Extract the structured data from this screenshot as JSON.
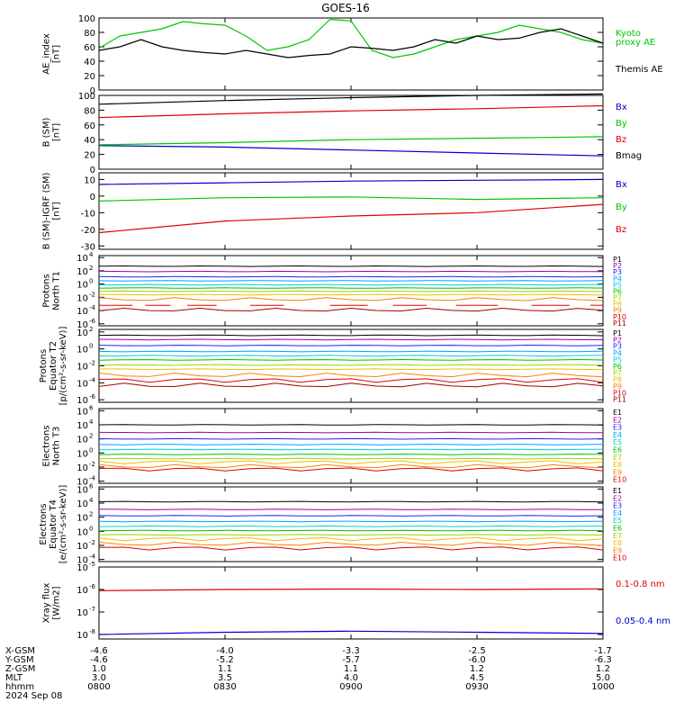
{
  "title": "GOES-16",
  "colors": {
    "black": "#000000",
    "green": "#00c800",
    "red": "#e00000",
    "blue": "#0000c8",
    "P": [
      "#000000",
      "#a000a0",
      "#2020ff",
      "#00a0ff",
      "#00d0d0",
      "#00c000",
      "#a0d000",
      "#e8c000",
      "#ff8000",
      "#e00000",
      "#a00000"
    ],
    "E": [
      "#000000",
      "#a000a0",
      "#2020ff",
      "#00a0ff",
      "#00d0d0",
      "#00c000",
      "#a0d000",
      "#e8c000",
      "#ff8000",
      "#e00000",
      "#a00000"
    ]
  },
  "chart_data": [
    {
      "id": "ae",
      "type": "line",
      "ylabel": [
        "AE_index",
        "[nT]"
      ],
      "ylim": [
        0,
        100
      ],
      "yticks": [
        0,
        20,
        40,
        60,
        80,
        100
      ],
      "yticklabels": [
        "0",
        "20",
        "40",
        "60",
        "80",
        "100"
      ],
      "series": [
        {
          "name": "Kyoto proxy AE",
          "label_lines": [
            "Kyoto",
            "proxy AE"
          ],
          "color": "green",
          "x": [
            0,
            5,
            10,
            15,
            20,
            25,
            30,
            35,
            40,
            45,
            50,
            55,
            60,
            65,
            70,
            75,
            80,
            85,
            90,
            95,
            100,
            105,
            110,
            115,
            120
          ],
          "y": [
            58,
            75,
            80,
            85,
            95,
            92,
            90,
            75,
            55,
            60,
            70,
            98,
            96,
            55,
            45,
            50,
            60,
            70,
            75,
            80,
            90,
            85,
            80,
            70,
            65
          ]
        },
        {
          "name": "Themis AE",
          "label_lines": [
            "Themis AE"
          ],
          "color": "black",
          "x": [
            0,
            5,
            10,
            15,
            20,
            25,
            30,
            35,
            40,
            45,
            50,
            55,
            60,
            65,
            70,
            75,
            80,
            85,
            90,
            95,
            100,
            105,
            110,
            115,
            120
          ],
          "y": [
            55,
            60,
            70,
            60,
            55,
            52,
            50,
            55,
            50,
            45,
            48,
            50,
            60,
            58,
            55,
            60,
            70,
            65,
            75,
            70,
            72,
            80,
            85,
            75,
            65
          ]
        }
      ]
    },
    {
      "id": "bsm",
      "type": "line",
      "ylabel": [
        "B (SM)",
        "[nT]"
      ],
      "ylim": [
        0,
        100
      ],
      "yticks": [
        0,
        20,
        40,
        60,
        80,
        100
      ],
      "yticklabels": [
        "0",
        "20",
        "40",
        "60",
        "80",
        "100"
      ],
      "series": [
        {
          "name": "Bx",
          "color": "blue",
          "x": [
            0,
            30,
            60,
            90,
            120
          ],
          "y": [
            32,
            30,
            26,
            22,
            18
          ]
        },
        {
          "name": "By",
          "color": "green",
          "x": [
            0,
            30,
            60,
            90,
            120
          ],
          "y": [
            33,
            36,
            40,
            42,
            44
          ]
        },
        {
          "name": "Bz",
          "color": "red",
          "x": [
            0,
            30,
            60,
            90,
            120
          ],
          "y": [
            70,
            75,
            79,
            82,
            86
          ]
        },
        {
          "name": "Bmag",
          "color": "black",
          "x": [
            0,
            30,
            60,
            90,
            120
          ],
          "y": [
            88,
            93,
            97,
            100,
            102
          ]
        }
      ]
    },
    {
      "id": "bigrf",
      "type": "line",
      "ylabel": [
        "B (SM)-IGRF (SM)",
        "[nT]"
      ],
      "ylim": [
        -32,
        14
      ],
      "yticks": [
        -30,
        -20,
        -10,
        0,
        10
      ],
      "yticklabels": [
        "-30",
        "-20",
        "-10",
        "0",
        "10"
      ],
      "series": [
        {
          "name": "Bx",
          "color": "blue",
          "x": [
            0,
            30,
            60,
            90,
            120
          ],
          "y": [
            7,
            8,
            9,
            9.5,
            10
          ]
        },
        {
          "name": "By",
          "color": "green",
          "x": [
            0,
            30,
            60,
            90,
            120
          ],
          "y": [
            -3,
            -1,
            -0.5,
            -2,
            -1
          ]
        },
        {
          "name": "Bz",
          "color": "red",
          "x": [
            0,
            30,
            60,
            90,
            120
          ],
          "y": [
            -22,
            -15,
            -12,
            -10,
            -5
          ]
        }
      ]
    },
    {
      "id": "pnorth",
      "type": "line",
      "log": true,
      "ylabel": [
        "Protons",
        "North T1"
      ],
      "ylim": [
        -6.3,
        4.3
      ],
      "yticks": [
        -6,
        -4,
        -2,
        0,
        2,
        4
      ],
      "yticklabels": [
        "10",
        "10",
        "10",
        "10",
        "10",
        "10"
      ],
      "ytickexp": [
        "-6",
        "-4",
        "-2",
        "0",
        "2",
        "4"
      ],
      "labels": [
        "P1",
        "P2",
        "P3",
        "P4",
        "P5",
        "P6",
        "P7",
        "P8",
        "P9",
        "P10",
        "P11"
      ],
      "levels": [
        2.7,
        1.9,
        1.1,
        0.5,
        -0.1,
        -0.6,
        -1.1,
        -1.6,
        -2.3,
        -3.2,
        -3.9
      ],
      "segments": [
        [
          0,
          8
        ],
        [
          11,
          17
        ],
        [
          21,
          28
        ],
        [
          36,
          44
        ],
        [
          55,
          64
        ],
        [
          70,
          78
        ],
        [
          85,
          95
        ],
        [
          103,
          112
        ],
        [
          117,
          120
        ]
      ]
    },
    {
      "id": "pequator",
      "type": "line",
      "log": true,
      "ylabel": [
        "Protons",
        "Equator T2",
        "[p/(cm²-s-sr-keV)]"
      ],
      "ylim": [
        -6.3,
        2.3
      ],
      "yticks": [
        -6,
        -4,
        -2,
        0,
        2
      ],
      "yticklabels": [
        "10",
        "10",
        "10",
        "10",
        "10"
      ],
      "ytickexp": [
        "-6",
        "-4",
        "-2",
        "0",
        "2"
      ],
      "labels": [
        "P1",
        "P2",
        "P3",
        "P4",
        "P5",
        "P6",
        "P7",
        "P8",
        "P9",
        "P10",
        "P11"
      ],
      "levels": [
        1.6,
        1.1,
        0.4,
        -0.3,
        -0.8,
        -1.3,
        -1.9,
        -2.4,
        -3.1,
        -3.7,
        -4.3
      ]
    },
    {
      "id": "enorth",
      "type": "line",
      "log": true,
      "ylabel": [
        "Electrons",
        "North T3"
      ],
      "ylim": [
        -4.3,
        6.3
      ],
      "yticks": [
        -4,
        -2,
        0,
        2,
        4,
        6
      ],
      "yticklabels": [
        "10",
        "10",
        "10",
        "10",
        "10",
        "10"
      ],
      "ytickexp": [
        "-4",
        "-2",
        "0",
        "2",
        "4",
        "6"
      ],
      "labels": [
        "E1",
        "E2",
        "E3",
        "E4",
        "E5",
        "E6",
        "E7",
        "E8",
        "E9",
        "E10"
      ],
      "levels": [
        4.0,
        2.9,
        2.0,
        1.2,
        0.5,
        -0.2,
        -0.8,
        -1.3,
        -1.9,
        -2.3
      ]
    },
    {
      "id": "eequator",
      "type": "line",
      "log": true,
      "ylabel": [
        "Electrons",
        "Equator T4",
        "[e/(cm²-s-sr-keV)]"
      ],
      "ylim": [
        -4.3,
        6.3
      ],
      "yticks": [
        -4,
        -2,
        0,
        2,
        4,
        6
      ],
      "yticklabels": [
        "10",
        "10",
        "10",
        "10",
        "10",
        "10"
      ],
      "ytickexp": [
        "-4",
        "-2",
        "0",
        "2",
        "4",
        "6"
      ],
      "labels": [
        "E1",
        "E2",
        "E3",
        "E4",
        "E5",
        "E6",
        "E7",
        "E8",
        "E9",
        "E10"
      ],
      "levels": [
        4.2,
        3.1,
        2.2,
        1.4,
        0.7,
        0.1,
        -0.5,
        -1.1,
        -1.8,
        -2.4
      ]
    },
    {
      "id": "xray",
      "type": "line",
      "log": true,
      "ylabel": [
        "Xray flux",
        "[W/m2]"
      ],
      "ylim": [
        -8.2,
        -5.0
      ],
      "yticks": [
        -8,
        -7,
        -6,
        -5
      ],
      "yticklabels": [
        "10",
        "10",
        "10",
        "10"
      ],
      "ytickexp": [
        "-8",
        "-7",
        "-6",
        "-5"
      ],
      "series": [
        {
          "name": "0.1-0.8 nm",
          "color": "red",
          "x": [
            0,
            30,
            60,
            90,
            120
          ],
          "y": [
            -6.05,
            -6.0,
            -5.98,
            -6.0,
            -5.97
          ]
        },
        {
          "name": "0.05-0.4 nm",
          "color": "blue",
          "x": [
            0,
            30,
            60,
            90,
            120
          ],
          "y": [
            -8.0,
            -7.9,
            -7.85,
            -7.9,
            -7.95
          ]
        }
      ]
    }
  ],
  "xaxis": {
    "rows": [
      {
        "name": "X-GSM",
        "values": [
          "-4.6",
          "-4.0",
          "-3.3",
          "-2.5",
          "-1.7"
        ]
      },
      {
        "name": "Y-GSM",
        "values": [
          "-4.6",
          "-5.2",
          "-5.7",
          "-6.0",
          "-6.3"
        ]
      },
      {
        "name": "Z-GSM",
        "values": [
          "1.0",
          "1.1",
          "1.1",
          "1.2",
          "1.2"
        ]
      },
      {
        "name": "MLT",
        "values": [
          "3.0",
          "3.5",
          "4.0",
          "4.5",
          "5.0"
        ]
      },
      {
        "name": "hhmm",
        "values": [
          "0800",
          "0830",
          "0900",
          "0930",
          "1000"
        ]
      }
    ],
    "date": "2024 Sep 08",
    "xlim": [
      0,
      120
    ],
    "ticks": [
      0,
      30,
      60,
      90,
      120
    ]
  }
}
